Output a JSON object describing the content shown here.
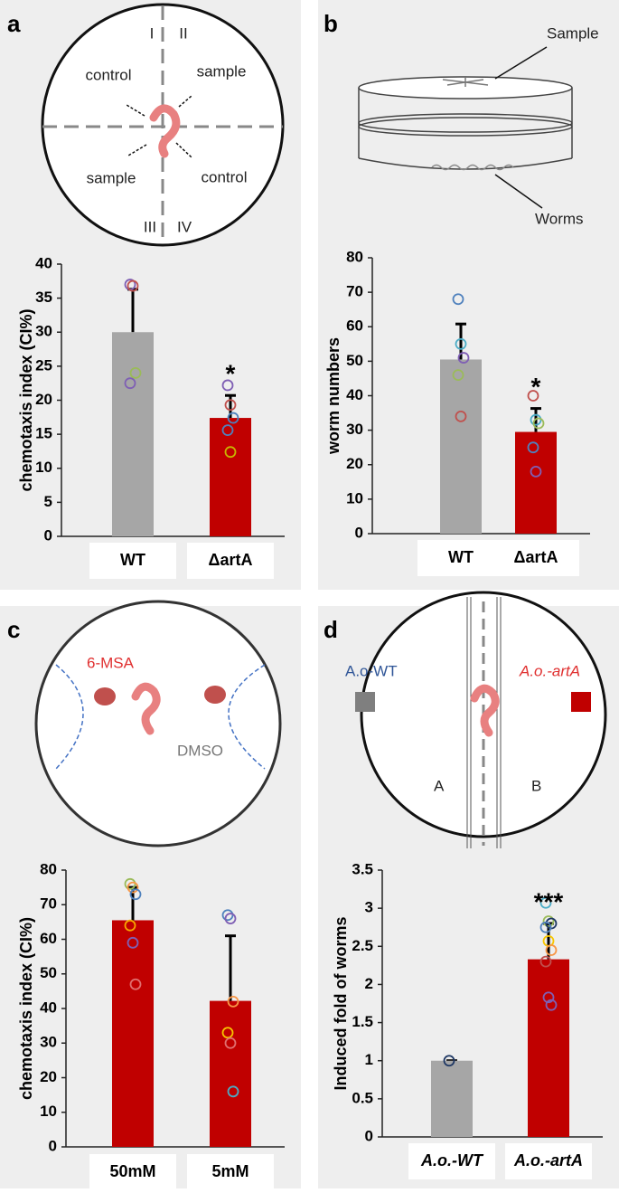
{
  "panel_letters": [
    "a",
    "b",
    "c",
    "d"
  ],
  "diagram_a": {
    "quadrants": [
      "I",
      "II",
      "III",
      "IV"
    ],
    "regions": [
      "control",
      "sample",
      "sample",
      "control"
    ]
  },
  "diagram_b": {
    "labels": [
      "Sample",
      "Worms"
    ]
  },
  "diagram_c": {
    "labels": [
      "6-MSA",
      "DMSO"
    ]
  },
  "diagram_d": {
    "labels": [
      "A.o-WT",
      "A.o.-artA",
      "A",
      "B"
    ]
  },
  "chart_data": [
    {
      "type": "bar",
      "y_label": "chemotaxis index (CI%)",
      "categories": [
        "WT",
        "ΔartA"
      ],
      "values": [
        30,
        17.4
      ],
      "errors": [
        6.3,
        3.3
      ],
      "colors": [
        "#a6a6a6",
        "#c00000"
      ],
      "points": [
        [
          37,
          36.8,
          24,
          22.5
        ],
        [
          22.2,
          19.3,
          17.4,
          15.6,
          12.4
        ]
      ],
      "point_colors": [
        [
          "#7f5fb4",
          "#c0504d",
          "#9bbb59",
          "#7f5fb4"
        ],
        [
          "#7f5fb4",
          "#c0504d",
          "#4f81bd",
          "#4f81bd",
          "#c8b400"
        ]
      ],
      "annotation": "*",
      "ylim": [
        0,
        40
      ],
      "yticks": [
        0,
        5,
        10,
        15,
        20,
        25,
        30,
        35,
        40
      ]
    },
    {
      "type": "bar",
      "y_label": "worm numbers",
      "categories": [
        "WT",
        "ΔartA"
      ],
      "values": [
        50.5,
        29.5
      ],
      "errors": [
        10.3,
        6.8
      ],
      "colors": [
        "#a6a6a6",
        "#c00000"
      ],
      "points": [
        [
          68,
          55,
          51,
          46,
          34
        ],
        [
          40,
          33,
          32,
          25,
          18
        ]
      ],
      "point_colors": [
        [
          "#4f81bd",
          "#4bacc6",
          "#7f5fb4",
          "#9bbb59",
          "#c0504d"
        ],
        [
          "#c0504d",
          "#4bacc6",
          "#9bbb59",
          "#4f81bd",
          "#7f5fb4"
        ]
      ],
      "annotation": "*",
      "ylim": [
        0,
        80
      ],
      "yticks": [
        0,
        10,
        20,
        30,
        40,
        50,
        60,
        70,
        80
      ]
    },
    {
      "type": "bar",
      "y_label": "chemotaxis index (CI%)",
      "categories": [
        "50mM",
        "5mM"
      ],
      "values": [
        65.5,
        42.2
      ],
      "errors": [
        9.5,
        18.8
      ],
      "colors": [
        "#c00000",
        "#c00000"
      ],
      "points": [
        [
          76,
          75,
          73,
          64,
          59,
          47
        ],
        [
          67,
          66,
          42,
          33,
          30,
          16
        ]
      ],
      "point_colors": [
        [
          "#9bbb59",
          "#f79646",
          "#4f81bd",
          "#f7a600",
          "#7f5fb4",
          "#e07070"
        ],
        [
          "#4f81bd",
          "#7f5fb4",
          "#f79646",
          "#f7c600",
          "#e07070",
          "#4bacc6"
        ]
      ],
      "annotation": null,
      "ylim": [
        0,
        80
      ],
      "yticks": [
        0,
        10,
        20,
        30,
        40,
        50,
        60,
        70,
        80
      ]
    },
    {
      "type": "bar",
      "y_label": "Induced fold of worms",
      "categories": [
        "A.o.-WT",
        "A.o.-artA"
      ],
      "values": [
        1,
        2.33
      ],
      "errors": [
        0,
        0.47
      ],
      "colors": [
        "#a6a6a6",
        "#c00000"
      ],
      "points": [
        [
          1
        ],
        [
          3.07,
          2.83,
          2.8,
          2.75,
          2.57,
          2.45,
          2.3,
          1.83,
          1.73
        ]
      ],
      "point_colors": [
        [
          "#1f3864"
        ],
        [
          "#4bacc6",
          "#9bbb59",
          "#1f3864",
          "#4f81bd",
          "#f7c600",
          "#f79646",
          "#c0504d",
          "#7f5fb4",
          "#7f5fb4"
        ]
      ],
      "annotation": "***",
      "ylim": [
        0,
        3.5
      ],
      "yticks": [
        0,
        0.5,
        1,
        1.5,
        2,
        2.5,
        3,
        3.5
      ]
    }
  ]
}
